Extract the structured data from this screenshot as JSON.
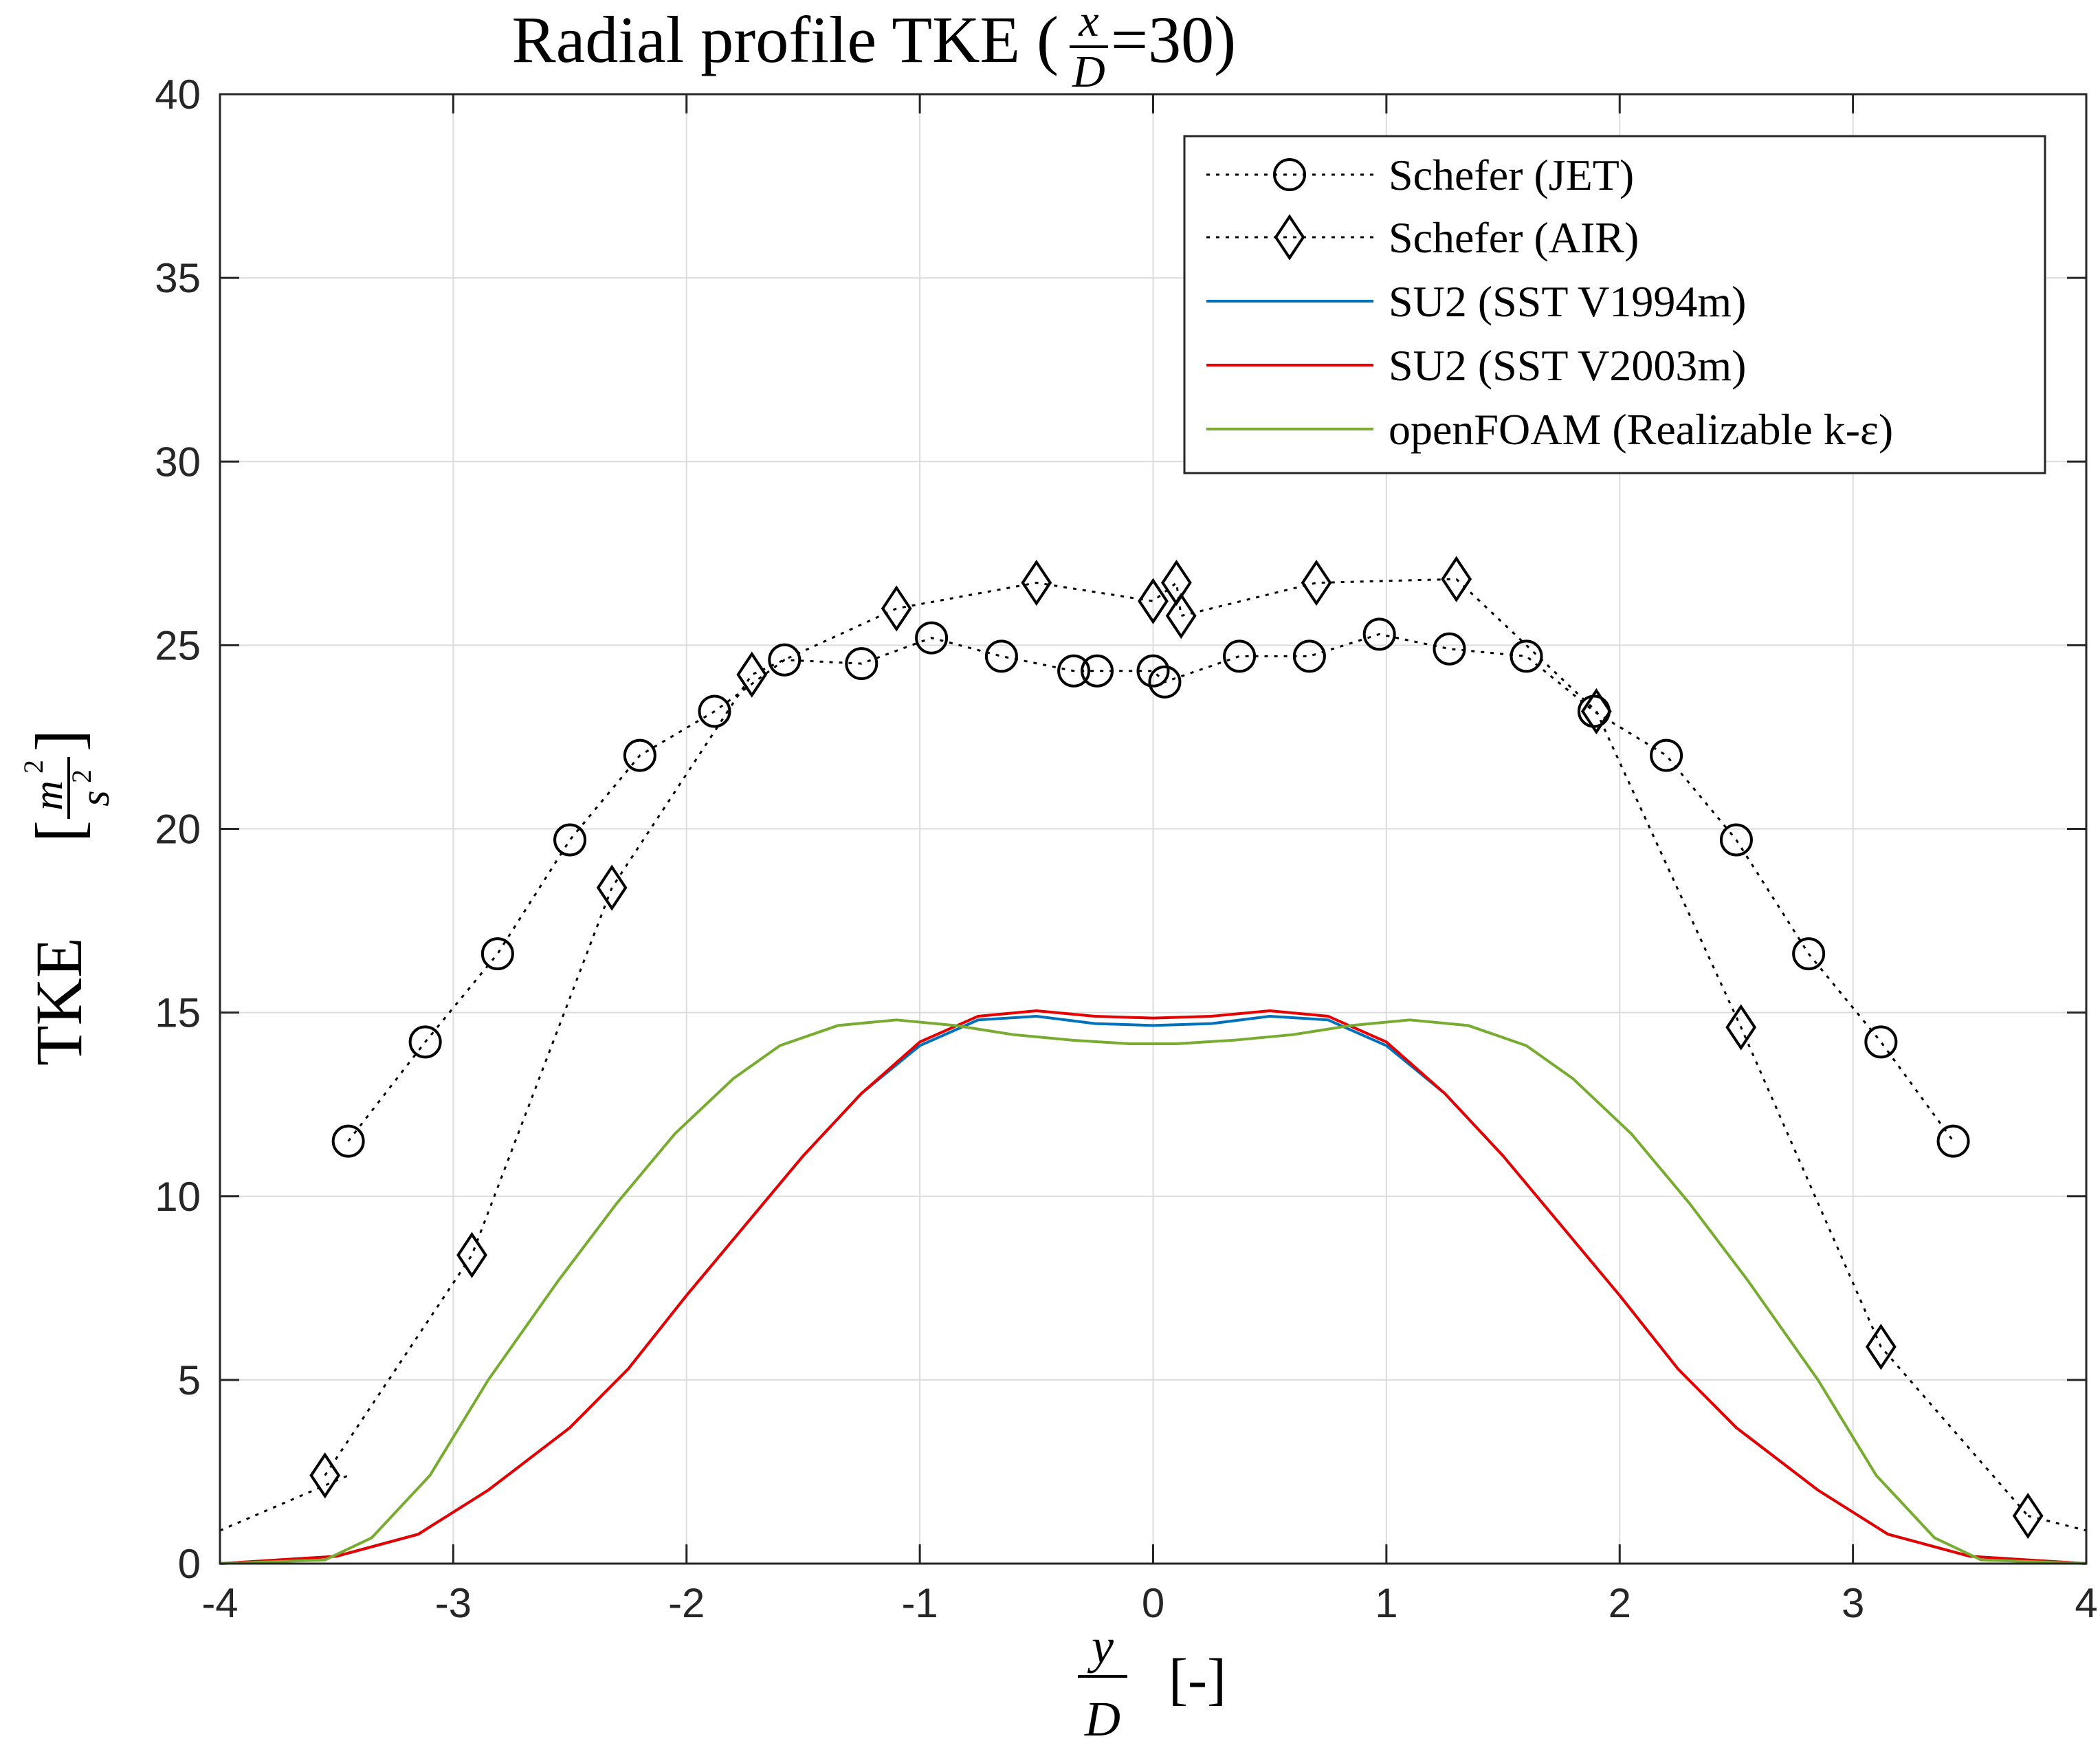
{
  "chart_data": {
    "type": "line",
    "title_text": "Radial profile TKE (",
    "title_frac_num": "x",
    "title_frac_den": "D",
    "title_eq": "=30)",
    "xlabel_num": "y",
    "xlabel_den": "D",
    "xlabel_unit": "[-]",
    "ylabel_text": "TKE",
    "ylabel_num": "m",
    "ylabel_num_sup": "2",
    "ylabel_den": "s",
    "ylabel_den_sup": "2",
    "xlim": [
      -4,
      4
    ],
    "ylim": [
      0,
      40
    ],
    "x_ticks": [
      -4,
      -3,
      -2,
      -1,
      0,
      1,
      2,
      3,
      4
    ],
    "y_ticks": [
      0,
      5,
      10,
      15,
      20,
      25,
      30,
      35,
      40
    ],
    "grid": true,
    "legend_position": "top-right",
    "series": [
      {
        "name": "Schefer (JET)",
        "color": "#000000",
        "line": "dotted",
        "marker": "circle",
        "line_x": [
          -4.0,
          -3.45
        ],
        "line_y": [
          0.9,
          2.4
        ],
        "x": [
          -3.45,
          -3.12,
          -2.81,
          -2.5,
          -2.2,
          -1.88,
          -1.58,
          -1.25,
          -0.95,
          -0.65,
          -0.34,
          -0.24,
          0.0,
          0.05,
          0.37,
          0.67,
          0.97,
          1.27,
          1.6,
          1.89,
          2.2,
          2.5,
          2.81,
          3.12,
          3.43
        ],
        "y": [
          11.5,
          14.2,
          16.6,
          19.7,
          22.0,
          23.2,
          24.6,
          24.5,
          25.2,
          24.7,
          24.3,
          24.3,
          24.3,
          24.0,
          24.7,
          24.7,
          25.3,
          24.9,
          24.7,
          23.2,
          22.0,
          19.7,
          16.6,
          14.2,
          11.5
        ]
      },
      {
        "name": "Schefer (AIR)",
        "color": "#000000",
        "line": "dotted",
        "marker": "diamond",
        "line_x": [
          3.75,
          4.0
        ],
        "line_y": [
          1.3,
          0.9
        ],
        "x": [
          -3.55,
          -2.92,
          -2.32,
          -1.72,
          -1.1,
          -0.5,
          0.0,
          0.1,
          0.12,
          0.7,
          1.3,
          1.9,
          2.52,
          3.12,
          3.75
        ],
        "y": [
          2.4,
          8.4,
          18.4,
          24.2,
          26.0,
          26.7,
          26.2,
          26.7,
          25.8,
          26.7,
          26.8,
          23.2,
          14.6,
          5.9,
          1.3
        ]
      },
      {
        "name": "SU2 (SST V1994m)",
        "color": "#0072bd",
        "line": "solid",
        "marker": "none",
        "x": [
          -4.0,
          -3.5,
          -3.15,
          -2.85,
          -2.5,
          -2.25,
          -2.0,
          -1.75,
          -1.5,
          -1.25,
          -1.0,
          -0.75,
          -0.5,
          -0.25,
          0.0,
          0.25,
          0.5,
          0.75,
          1.0,
          1.25,
          1.5,
          1.75,
          2.0,
          2.25,
          2.5,
          2.85,
          3.15,
          3.5,
          4.0
        ],
        "y": [
          0.0,
          0.2,
          0.8,
          2.0,
          3.7,
          5.3,
          7.3,
          9.2,
          11.1,
          12.8,
          14.1,
          14.8,
          14.9,
          14.7,
          14.65,
          14.7,
          14.9,
          14.8,
          14.1,
          12.8,
          11.1,
          9.2,
          7.3,
          5.3,
          3.7,
          2.0,
          0.8,
          0.2,
          0.0
        ]
      },
      {
        "name": "SU2 (SST V2003m)",
        "color": "#e60000",
        "line": "solid",
        "marker": "none",
        "x": [
          -4.0,
          -3.5,
          -3.15,
          -2.85,
          -2.5,
          -2.25,
          -2.0,
          -1.75,
          -1.5,
          -1.25,
          -1.0,
          -0.75,
          -0.5,
          -0.25,
          0.0,
          0.25,
          0.5,
          0.75,
          1.0,
          1.25,
          1.5,
          1.75,
          2.0,
          2.25,
          2.5,
          2.85,
          3.15,
          3.5,
          4.0
        ],
        "y": [
          0.0,
          0.2,
          0.8,
          2.0,
          3.7,
          5.3,
          7.3,
          9.2,
          11.1,
          12.8,
          14.2,
          14.9,
          15.05,
          14.9,
          14.85,
          14.9,
          15.05,
          14.9,
          14.2,
          12.8,
          11.1,
          9.2,
          7.3,
          5.3,
          3.7,
          2.0,
          0.8,
          0.2,
          0.0
        ]
      },
      {
        "name": "openFOAM (Realizable k-ε)",
        "color": "#77ac30",
        "line": "solid",
        "marker": "none",
        "x": [
          -4.0,
          -3.55,
          -3.35,
          -3.1,
          -2.85,
          -2.55,
          -2.3,
          -2.05,
          -1.8,
          -1.6,
          -1.35,
          -1.1,
          -0.85,
          -0.6,
          -0.35,
          -0.1,
          0.0,
          0.1,
          0.35,
          0.6,
          0.85,
          1.1,
          1.35,
          1.6,
          1.8,
          2.05,
          2.3,
          2.55,
          2.85,
          3.1,
          3.35,
          3.55,
          4.0
        ],
        "y": [
          0.0,
          0.1,
          0.7,
          2.4,
          5.0,
          7.7,
          9.8,
          11.7,
          13.2,
          14.1,
          14.65,
          14.8,
          14.65,
          14.4,
          14.25,
          14.15,
          14.15,
          14.15,
          14.25,
          14.4,
          14.65,
          14.8,
          14.65,
          14.1,
          13.2,
          11.7,
          9.8,
          7.7,
          5.0,
          2.4,
          0.7,
          0.1,
          0.0
        ]
      }
    ]
  }
}
